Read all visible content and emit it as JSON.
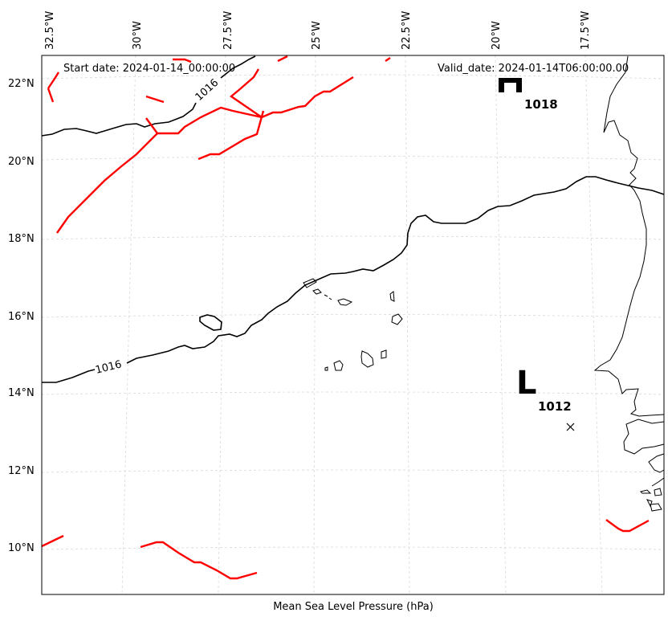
{
  "map": {
    "start_date": "Start date: 2024-01-14_00:00:00",
    "valid_date": "Valid_date: 2024-01-14T06:00:00.00",
    "caption": "Mean Sea Level Pressure (hPa)",
    "lon_labels": [
      "32.5°W",
      "30°W",
      "27.5°W",
      "25°W",
      "22.5°W",
      "20°W",
      "17.5°W"
    ],
    "lat_labels": [
      "22°N",
      "20°N",
      "18°N",
      "16°N",
      "14°N",
      "12°N",
      "10°N"
    ],
    "isobar_label": "1016",
    "high": {
      "symbol": "H",
      "value": "1018"
    },
    "low": {
      "symbol": "L",
      "value": "1012"
    },
    "colors": {
      "front": "#ff0000",
      "isobar": "#000000",
      "coast": "#000000",
      "grid": "#cccccc"
    }
  }
}
